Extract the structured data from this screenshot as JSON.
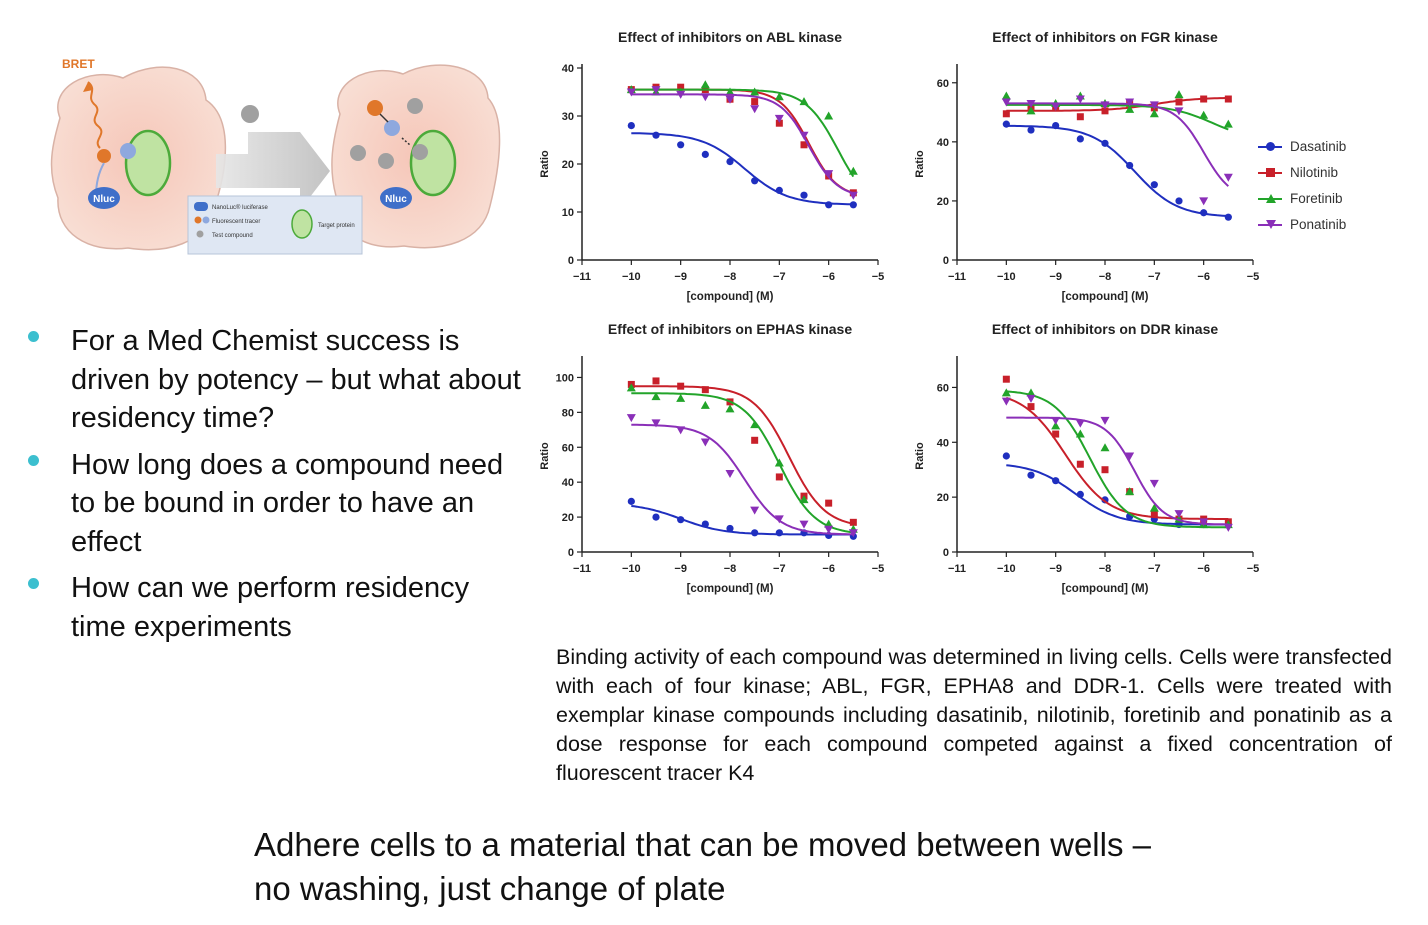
{
  "diagram": {
    "bret_label": "BRET",
    "nluc_label": "Nluc",
    "legend_items": [
      "NanoLuc® luciferase",
      "Fluorescent tracer",
      "Test compound",
      "Target protein"
    ]
  },
  "bullets": [
    "For a Med Chemist success is driven by potency – but what about residency time?",
    "How long does a compound need to be bound in order to have an effect",
    "How can we perform residency time experiments"
  ],
  "caption": "Binding activity of each compound was determined in living cells. Cells were transfected with each of four kinase; ABL, FGR, EPHA8 and DDR-1. Cells were treated with exemplar kinase compounds including dasatinib, nilotinib, foretinib and ponatinib as a dose response for each compound competed against a fixed concentration of fluorescent tracer K4",
  "footer": "Adhere cells to a material that can be moved between wells – no washing, just change of plate",
  "colors": {
    "Dasatinib": "#1f2fbf",
    "Nilotinib": "#c8202a",
    "Foretinib": "#22a42a",
    "Ponatinib": "#8a2fb8",
    "bullet": "#3cbfcf"
  },
  "legend": [
    {
      "name": "Dasatinib",
      "marker": "circle"
    },
    {
      "name": "Nilotinib",
      "marker": "square"
    },
    {
      "name": "Foretinib",
      "marker": "triangle-up"
    },
    {
      "name": "Ponatinib",
      "marker": "triangle-down"
    }
  ],
  "chart_data": [
    {
      "type": "scatter",
      "title": "Effect of inhibitors on ABL kinase",
      "xlabel": "[compound] (M)",
      "ylabel": "Ratio",
      "xlim": [
        -11,
        -5
      ],
      "ylim": [
        0,
        40
      ],
      "xticks": [
        -11,
        -10,
        -9,
        -8,
        -7,
        -6,
        -5
      ],
      "yticks": [
        0,
        10,
        20,
        30,
        40
      ],
      "series": [
        {
          "name": "Dasatinib",
          "x": [
            -10,
            -9.5,
            -9,
            -8.5,
            -8,
            -7.5,
            -7,
            -6.5,
            -6,
            -5.5
          ],
          "y": [
            28,
            26,
            24,
            22,
            20.5,
            16.5,
            14.5,
            13.5,
            11.5,
            11.5
          ],
          "fit": {
            "top": 26.5,
            "bottom": 11.5,
            "logIC50": -7.7,
            "hill": 1
          }
        },
        {
          "name": "Nilotinib",
          "x": [
            -10,
            -9.5,
            -9,
            -8.5,
            -8,
            -7.5,
            -7,
            -6.5,
            -6,
            -5.5
          ],
          "y": [
            35.5,
            36,
            36,
            35.5,
            33.5,
            33,
            28.5,
            24,
            17.5,
            14
          ],
          "fit": {
            "top": 35.5,
            "bottom": 13,
            "logIC50": -6.4,
            "hill": 1.5
          }
        },
        {
          "name": "Foretinib",
          "x": [
            -10,
            -9.5,
            -9,
            -8.5,
            -8,
            -7.5,
            -7,
            -6.5,
            -6,
            -5.5
          ],
          "y": [
            35.5,
            35,
            35,
            36.5,
            35,
            35,
            34,
            33,
            30,
            18.5
          ],
          "fit": {
            "top": 35.5,
            "bottom": 10,
            "logIC50": -5.8,
            "hill": 1.3
          }
        },
        {
          "name": "Ponatinib",
          "x": [
            -10,
            -9.5,
            -9,
            -8.5,
            -8,
            -7.5,
            -7,
            -6.5,
            -6,
            -5.5
          ],
          "y": [
            35,
            35.5,
            34.5,
            34,
            33.5,
            31.5,
            29.5,
            26,
            18,
            13.5
          ],
          "fit": {
            "top": 34.5,
            "bottom": 13,
            "logIC50": -6.4,
            "hill": 1.5
          }
        }
      ]
    },
    {
      "type": "scatter",
      "title": "Effect of inhibitors on FGR kinase",
      "xlabel": "[compound] (M)",
      "ylabel": "Ratio",
      "xlim": [
        -11,
        -5
      ],
      "ylim": [
        0,
        65
      ],
      "xticks": [
        -11,
        -10,
        -9,
        -8,
        -7,
        -6,
        -5
      ],
      "yticks": [
        0,
        20,
        40,
        60
      ],
      "series": [
        {
          "name": "Dasatinib",
          "x": [
            -10,
            -9.5,
            -9,
            -8.5,
            -8,
            -7.5,
            -7,
            -6.5,
            -6,
            -5.5
          ],
          "y": [
            46,
            44,
            45.5,
            41,
            39.5,
            32,
            25.5,
            20,
            16,
            14.5
          ],
          "fit": {
            "top": 45.5,
            "bottom": 14.5,
            "logIC50": -7.4,
            "hill": 1
          }
        },
        {
          "name": "Nilotinib",
          "x": [
            -10,
            -9.5,
            -9,
            -8.5,
            -8,
            -7.5,
            -7,
            -6.5,
            -6,
            -5.5
          ],
          "y": [
            49.5,
            52,
            52,
            48.5,
            50.5,
            53,
            51.5,
            53.5,
            54.5,
            54.5
          ],
          "fit": {
            "top": 50.5,
            "bottom": 55,
            "logIC50": -7.0,
            "hill": 1
          }
        },
        {
          "name": "Foretinib",
          "x": [
            -10,
            -9.5,
            -9,
            -8.5,
            -8,
            -7.5,
            -7,
            -6.5,
            -6,
            -5.5
          ],
          "y": [
            55.5,
            50.5,
            53,
            55.5,
            53,
            51,
            49.5,
            56,
            49,
            46
          ],
          "fit": {
            "top": 52.5,
            "bottom": 40,
            "logIC50": -5.8,
            "hill": 1
          }
        },
        {
          "name": "Ponatinib",
          "x": [
            -10,
            -9.5,
            -9,
            -8.5,
            -8,
            -7.5,
            -7,
            -6.5,
            -6,
            -5.5
          ],
          "y": [
            53.5,
            53,
            52,
            54.5,
            52.5,
            53.5,
            52.5,
            50.5,
            20,
            28
          ],
          "fit": {
            "top": 53,
            "bottom": 20,
            "logIC50": -6.0,
            "hill": 1.5
          }
        }
      ]
    },
    {
      "type": "scatter",
      "title": "Effect of inhibitors on EPHAS kinase",
      "xlabel": "[compound] (M)",
      "ylabel": "Ratio",
      "xlim": [
        -11,
        -5
      ],
      "ylim": [
        0,
        110
      ],
      "xticks": [
        -11,
        -10,
        -9,
        -8,
        -7,
        -6,
        -5
      ],
      "yticks": [
        0,
        20,
        40,
        60,
        80,
        100
      ],
      "series": [
        {
          "name": "Dasatinib",
          "x": [
            -10,
            -9.5,
            -9,
            -8.5,
            -8,
            -7.5,
            -7,
            -6.5,
            -6,
            -5.5
          ],
          "y": [
            29,
            20,
            18.5,
            16,
            13.5,
            11,
            11,
            11,
            9.5,
            9
          ],
          "fit": {
            "top": 28,
            "bottom": 10,
            "logIC50": -9.0,
            "hill": 1
          }
        },
        {
          "name": "Nilotinib",
          "x": [
            -10,
            -9.5,
            -9,
            -8.5,
            -8,
            -7.5,
            -7,
            -6.5,
            -6,
            -5.5
          ],
          "y": [
            96,
            98,
            95,
            93,
            86,
            64,
            43,
            32,
            28,
            17
          ],
          "fit": {
            "top": 95,
            "bottom": 14,
            "logIC50": -6.8,
            "hill": 1.2
          }
        },
        {
          "name": "Foretinib",
          "x": [
            -10,
            -9.5,
            -9,
            -8.5,
            -8,
            -7.5,
            -7,
            -6.5,
            -6,
            -5.5
          ],
          "y": [
            94,
            89,
            88,
            84,
            82,
            73,
            51,
            30,
            16,
            13
          ],
          "fit": {
            "top": 91,
            "bottom": 10,
            "logIC50": -7.0,
            "hill": 1.2
          }
        },
        {
          "name": "Ponatinib",
          "x": [
            -10,
            -9.5,
            -9,
            -8.5,
            -8,
            -7.5,
            -7,
            -6.5,
            -6,
            -5.5
          ],
          "y": [
            77,
            74,
            70,
            63,
            45,
            24,
            19,
            16,
            13,
            11
          ],
          "fit": {
            "top": 73,
            "bottom": 10,
            "logIC50": -7.7,
            "hill": 1.2
          }
        }
      ]
    },
    {
      "type": "scatter",
      "title": "Effect of inhibitors on DDR kinase",
      "xlabel": "[compound] (M)",
      "ylabel": "Ratio",
      "xlim": [
        -11,
        -5
      ],
      "ylim": [
        0,
        70
      ],
      "xticks": [
        -11,
        -10,
        -9,
        -8,
        -7,
        -6,
        -5
      ],
      "yticks": [
        0,
        20,
        40,
        60
      ],
      "series": [
        {
          "name": "Dasatinib",
          "x": [
            -10,
            -9.5,
            -9,
            -8.5,
            -8,
            -7.5,
            -7,
            -6.5,
            -6,
            -5.5
          ],
          "y": [
            35,
            28,
            26,
            21,
            19,
            13,
            12,
            10,
            10,
            10
          ],
          "fit": {
            "top": 32.5,
            "bottom": 10,
            "logIC50": -8.6,
            "hill": 1
          }
        },
        {
          "name": "Nilotinib",
          "x": [
            -10,
            -9.5,
            -9,
            -8.5,
            -8,
            -7.5,
            -7,
            -6.5,
            -6,
            -5.5
          ],
          "y": [
            63,
            53,
            43,
            32,
            30,
            22,
            14,
            12,
            12,
            11
          ],
          "fit": {
            "top": 59,
            "bottom": 12,
            "logIC50": -8.8,
            "hill": 1
          }
        },
        {
          "name": "Foretinib",
          "x": [
            -10,
            -9.5,
            -9,
            -8.5,
            -8,
            -7.5,
            -7,
            -6.5,
            -6,
            -5.5
          ],
          "y": [
            58,
            58,
            46,
            43,
            38,
            22,
            16,
            12,
            10,
            10
          ],
          "fit": {
            "top": 59,
            "bottom": 9,
            "logIC50": -8.3,
            "hill": 1.2
          }
        },
        {
          "name": "Ponatinib",
          "x": [
            -10,
            -9.5,
            -9,
            -8.5,
            -8,
            -7.5,
            -7,
            -6.5,
            -6,
            -5.5
          ],
          "y": [
            55,
            56,
            48,
            47,
            48,
            35,
            25,
            14,
            11,
            9
          ],
          "fit": {
            "top": 49,
            "bottom": 10,
            "logIC50": -7.4,
            "hill": 1.5
          }
        }
      ]
    }
  ]
}
